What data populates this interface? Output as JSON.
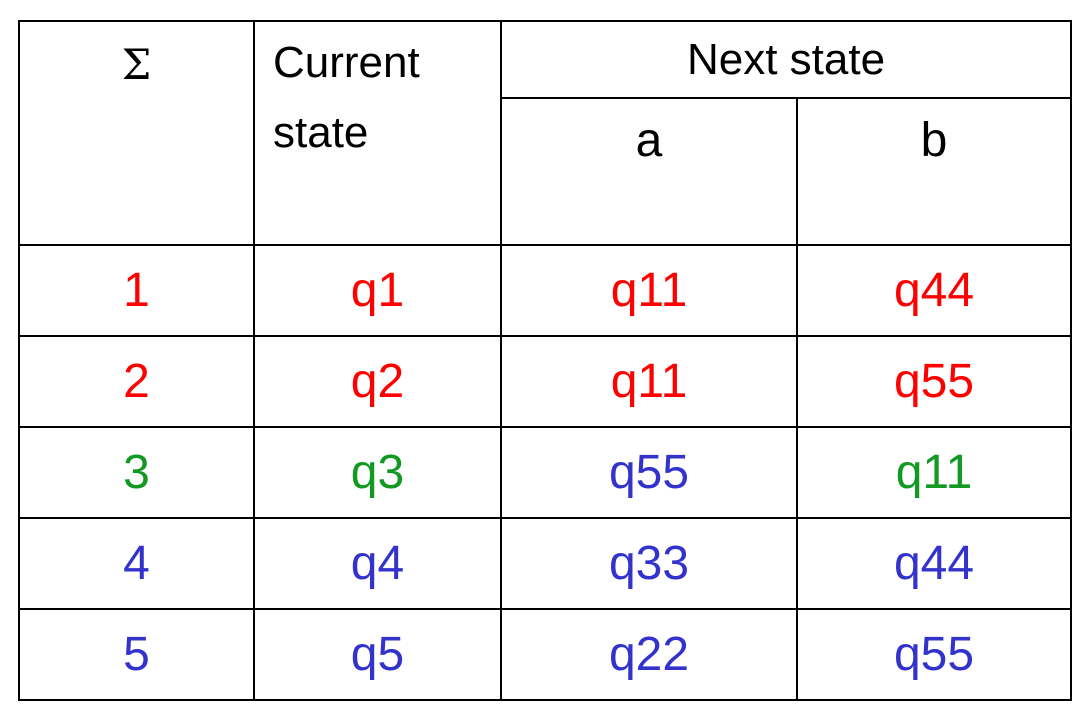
{
  "colors": {
    "red": "#ff0000",
    "green": "#119922",
    "blue": "#3333cc",
    "border": "#000000"
  },
  "header": {
    "sigma": "Σ",
    "current_state": "Current state",
    "next_state": "Next state",
    "symbol_a": "a",
    "symbol_b": "b"
  },
  "rows": [
    {
      "sigma": "1",
      "current": "q1",
      "next_a": "q11",
      "next_b": "q44",
      "colors": [
        "red",
        "red",
        "red",
        "red"
      ]
    },
    {
      "sigma": "2",
      "current": "q2",
      "next_a": "q11",
      "next_b": "q55",
      "colors": [
        "red",
        "red",
        "red",
        "red"
      ]
    },
    {
      "sigma": "3",
      "current": "q3",
      "next_a": "q55",
      "next_b": "q11",
      "colors": [
        "green",
        "green",
        "blue",
        "green"
      ]
    },
    {
      "sigma": "4",
      "current": "q4",
      "next_a": "q33",
      "next_b": "q44",
      "colors": [
        "blue",
        "blue",
        "blue",
        "blue"
      ]
    },
    {
      "sigma": "5",
      "current": "q5",
      "next_a": "q22",
      "next_b": "q55",
      "colors": [
        "blue",
        "blue",
        "blue",
        "blue"
      ]
    }
  ]
}
